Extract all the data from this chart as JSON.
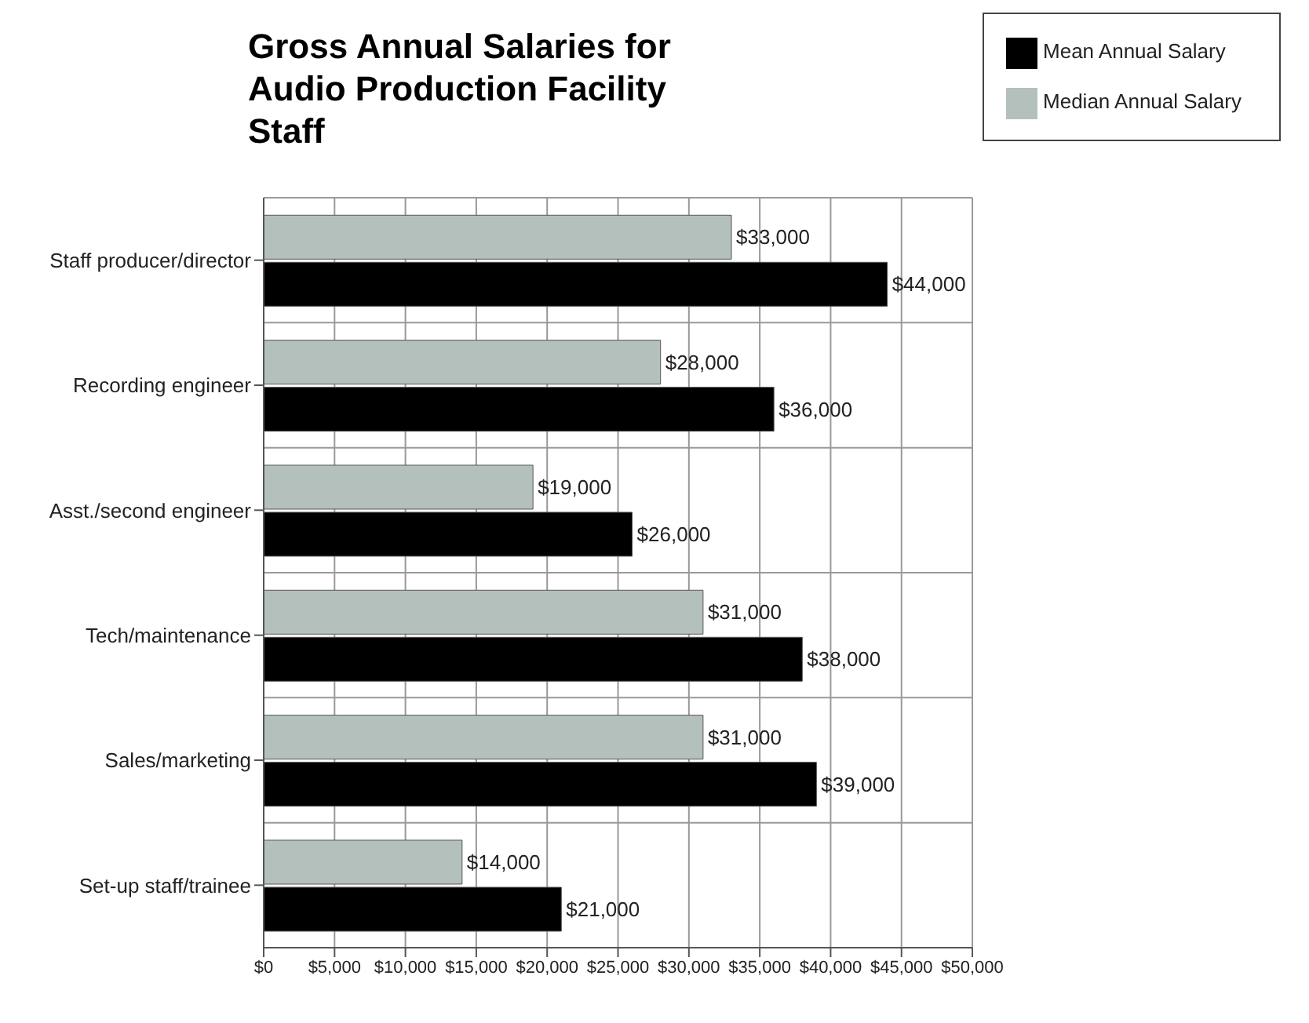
{
  "chart_data": {
    "type": "bar",
    "orientation": "horizontal",
    "title": "Gross Annual Salaries for Audio Production Facility Staff",
    "categories": [
      "Staff producer/director",
      "Recording engineer",
      "Asst./second engineer",
      "Tech/maintenance",
      "Sales/marketing",
      "Set-up staff/trainee"
    ],
    "series": [
      {
        "name": "Median Annual Salary",
        "color": "#b4c0bc",
        "values": [
          33000,
          28000,
          19000,
          31000,
          31000,
          14000
        ],
        "value_labels": [
          "$33,000",
          "$28,000",
          "$19,000",
          "$31,000",
          "$31,000",
          "$14,000"
        ]
      },
      {
        "name": "Mean Annual Salary",
        "color": "#000000",
        "values": [
          44000,
          36000,
          26000,
          38000,
          39000,
          21000
        ],
        "value_labels": [
          "$44,000",
          "$36,000",
          "$26,000",
          "$38,000",
          "$39,000",
          "$21,000"
        ]
      }
    ],
    "xlim": [
      0,
      50000
    ],
    "xticks": [
      {
        "value": 0,
        "label": "$0"
      },
      {
        "value": 5000,
        "label": "$5,000"
      },
      {
        "value": 10000,
        "label": "$10,000"
      },
      {
        "value": 15000,
        "label": "$15,000"
      },
      {
        "value": 20000,
        "label": "$20,000"
      },
      {
        "value": 25000,
        "label": "$25,000"
      },
      {
        "value": 30000,
        "label": "$30,000"
      },
      {
        "value": 35000,
        "label": "$35,000"
      },
      {
        "value": 40000,
        "label": "$40,000"
      },
      {
        "value": 45000,
        "label": "$45,000"
      },
      {
        "value": 50000,
        "label": "$50,000"
      }
    ],
    "grid": true,
    "legend": "top right"
  }
}
